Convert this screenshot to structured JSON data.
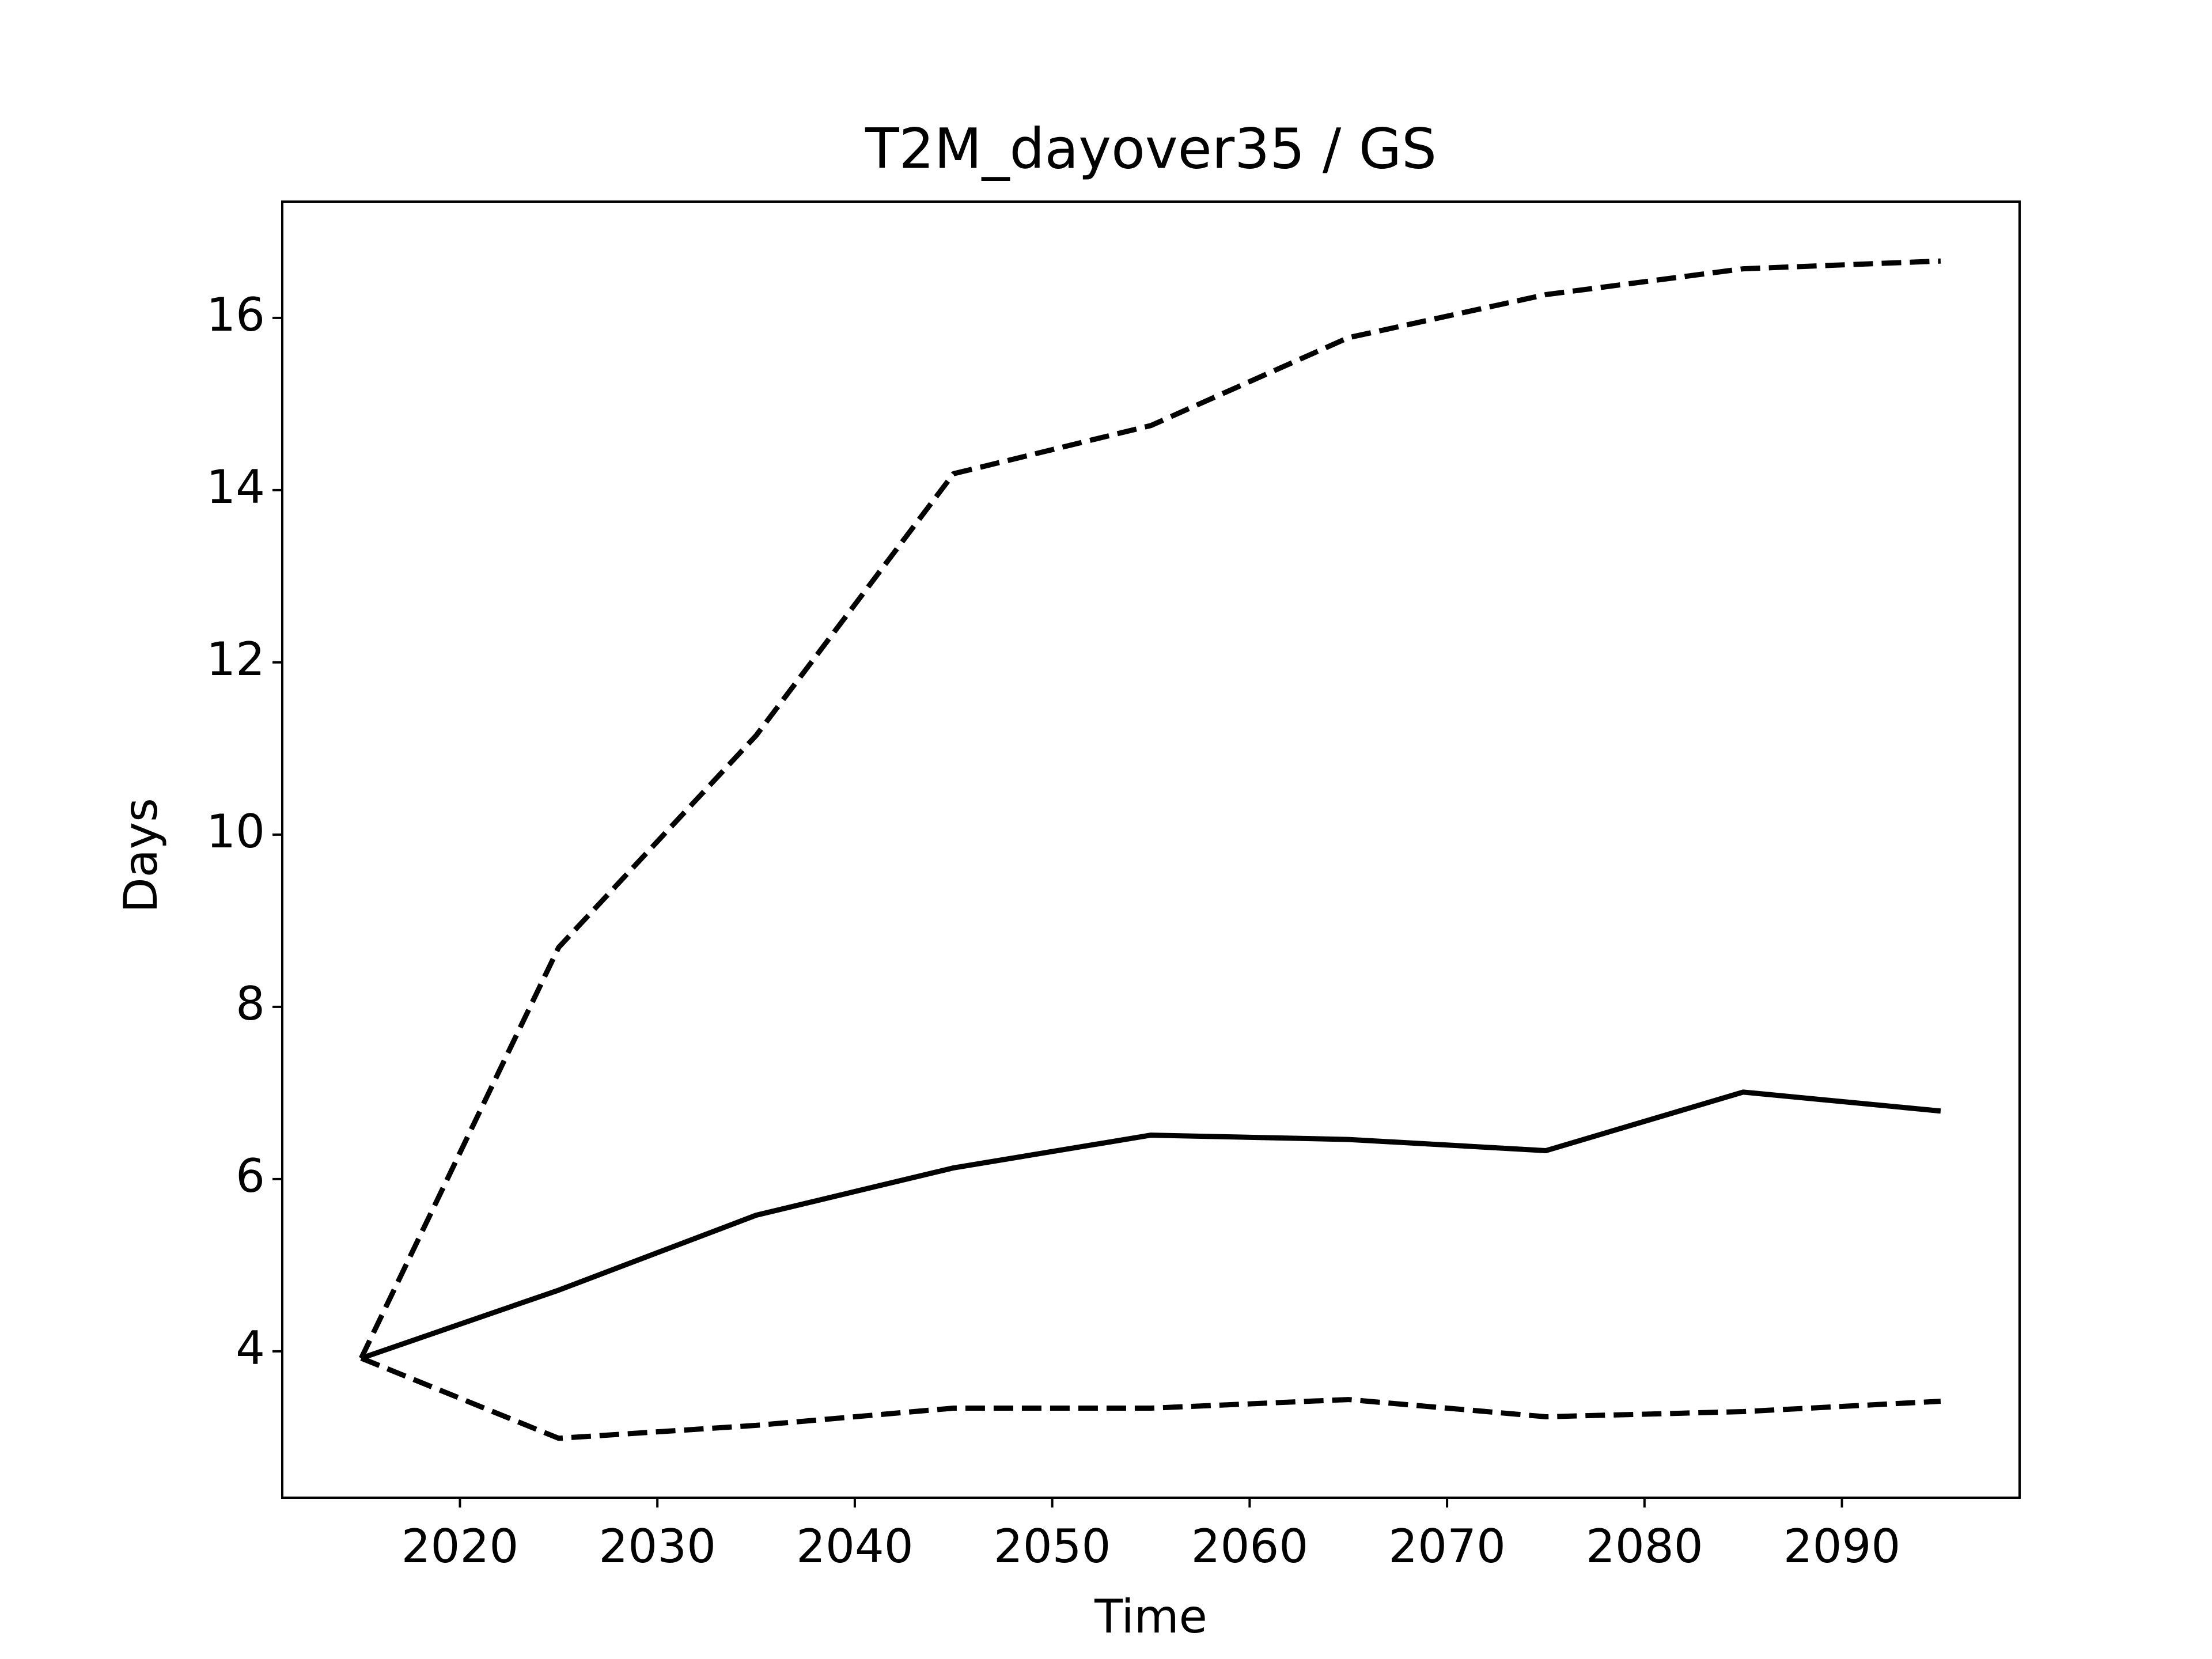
{
  "chart_data": {
    "type": "line",
    "title": "T2M_dayover35 / GS",
    "xlabel": "Time",
    "ylabel": "Days",
    "x": [
      2015,
      2025,
      2035,
      2045,
      2055,
      2065,
      2075,
      2085,
      2095
    ],
    "series": [
      {
        "color": "#000000",
        "linestyle": "solid",
        "values": [
          3.92,
          4.71,
          5.58,
          6.13,
          6.51,
          6.46,
          6.33,
          7.01,
          6.79
        ]
      },
      {
        "color": "#000000",
        "linestyle": "dashed",
        "values": [
          3.92,
          8.69,
          11.15,
          14.19,
          14.75,
          15.77,
          16.27,
          16.57,
          16.66
        ]
      },
      {
        "color": "#000000",
        "linestyle": "dashed",
        "values": [
          3.92,
          2.99,
          3.14,
          3.34,
          3.34,
          3.44,
          3.24,
          3.3,
          3.42
        ]
      }
    ],
    "xlim": [
      2011,
      2099
    ],
    "xticks": [
      2020,
      2030,
      2040,
      2050,
      2060,
      2070,
      2080,
      2090
    ],
    "ylim": [
      2.3,
      17.35
    ],
    "yticks": [
      4,
      6,
      8,
      10,
      12,
      14,
      16
    ],
    "grid": false
  }
}
